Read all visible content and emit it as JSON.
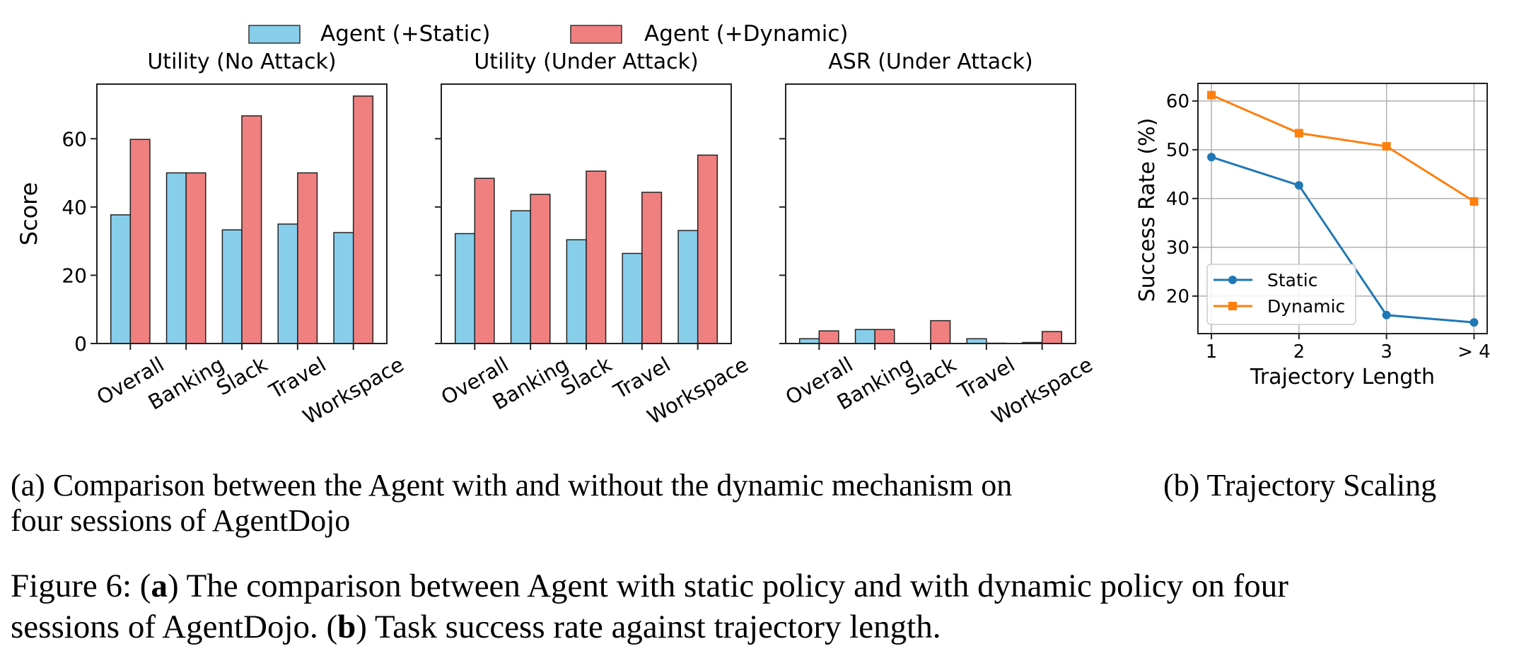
{
  "legend": {
    "static": "Agent (+Static)",
    "dynamic": "Agent (+Dynamic)",
    "colors": {
      "static": "#87CEEB",
      "dynamic": "#F08080"
    }
  },
  "chart_data": [
    {
      "type": "bar",
      "title": "Utility (No Attack)",
      "xlabel": "",
      "ylabel": "Score",
      "categories": [
        "Overall",
        "Banking",
        "Slack",
        "Travel",
        "Workspace"
      ],
      "ylim": [
        0,
        76
      ],
      "yticks": [
        0,
        20,
        40,
        60
      ],
      "show_ytick_labels": true,
      "series": [
        {
          "name": "Agent (+Static)",
          "color": "#87CEEB",
          "values": [
            37.7,
            50.0,
            33.3,
            35.0,
            32.5
          ]
        },
        {
          "name": "Agent (+Dynamic)",
          "color": "#F08080",
          "values": [
            59.8,
            50.0,
            66.7,
            50.0,
            72.5
          ]
        }
      ]
    },
    {
      "type": "bar",
      "title": "Utility (Under Attack)",
      "xlabel": "",
      "ylabel": "",
      "categories": [
        "Overall",
        "Banking",
        "Slack",
        "Travel",
        "Workspace"
      ],
      "ylim": [
        0,
        76
      ],
      "yticks": [
        0,
        20,
        40,
        60
      ],
      "show_ytick_labels": false,
      "series": [
        {
          "name": "Agent (+Static)",
          "color": "#87CEEB",
          "values": [
            32.2,
            38.9,
            30.4,
            26.4,
            33.1
          ]
        },
        {
          "name": "Agent (+Dynamic)",
          "color": "#F08080",
          "values": [
            48.4,
            43.7,
            50.5,
            44.3,
            55.2
          ]
        }
      ]
    },
    {
      "type": "bar",
      "title": "ASR (Under Attack)",
      "xlabel": "",
      "ylabel": "",
      "categories": [
        "Overall",
        "Banking",
        "Slack",
        "Travel",
        "Workspace"
      ],
      "ylim": [
        0,
        76
      ],
      "yticks": [
        0,
        20,
        40,
        60
      ],
      "show_ytick_labels": false,
      "series": [
        {
          "name": "Agent (+Static)",
          "color": "#87CEEB",
          "values": [
            1.4,
            4.1,
            0.0,
            1.4,
            0.3
          ]
        },
        {
          "name": "Agent (+Dynamic)",
          "color": "#F08080",
          "values": [
            3.7,
            4.1,
            6.7,
            0.1,
            3.5
          ]
        }
      ]
    },
    {
      "type": "line",
      "title": "",
      "xlabel": "Trajectory Length",
      "ylabel": "Success Rate (%)",
      "categories": [
        "1",
        "2",
        "3",
        "> 4"
      ],
      "ylim": [
        12.3,
        63.6
      ],
      "yticks": [
        20,
        30,
        40,
        50,
        60
      ],
      "grid": true,
      "legend": "lower-left",
      "series": [
        {
          "name": "Static",
          "color": "#1f77b4",
          "marker": "circle",
          "values": [
            48.5,
            42.7,
            16.1,
            14.6
          ]
        },
        {
          "name": "Dynamic",
          "color": "#ff7f0e",
          "marker": "square",
          "values": [
            61.2,
            53.4,
            50.7,
            39.4
          ]
        }
      ]
    }
  ],
  "captions": {
    "a_line1": "(a) Comparison between the Agent with and without the dynamic mechanism on",
    "a_line2": "four sessions of AgentDojo",
    "b": "(b) Trajectory Scaling",
    "figure": {
      "label": "Figure 6: ",
      "open_a": "(",
      "bold_a": "a",
      "text_a": ") The comparison between Agent with static policy and with dynamic policy on four",
      "line2_start": "sessions of AgentDojo. (",
      "bold_b": "b",
      "text_b": ") Task success rate against trajectory length."
    }
  }
}
